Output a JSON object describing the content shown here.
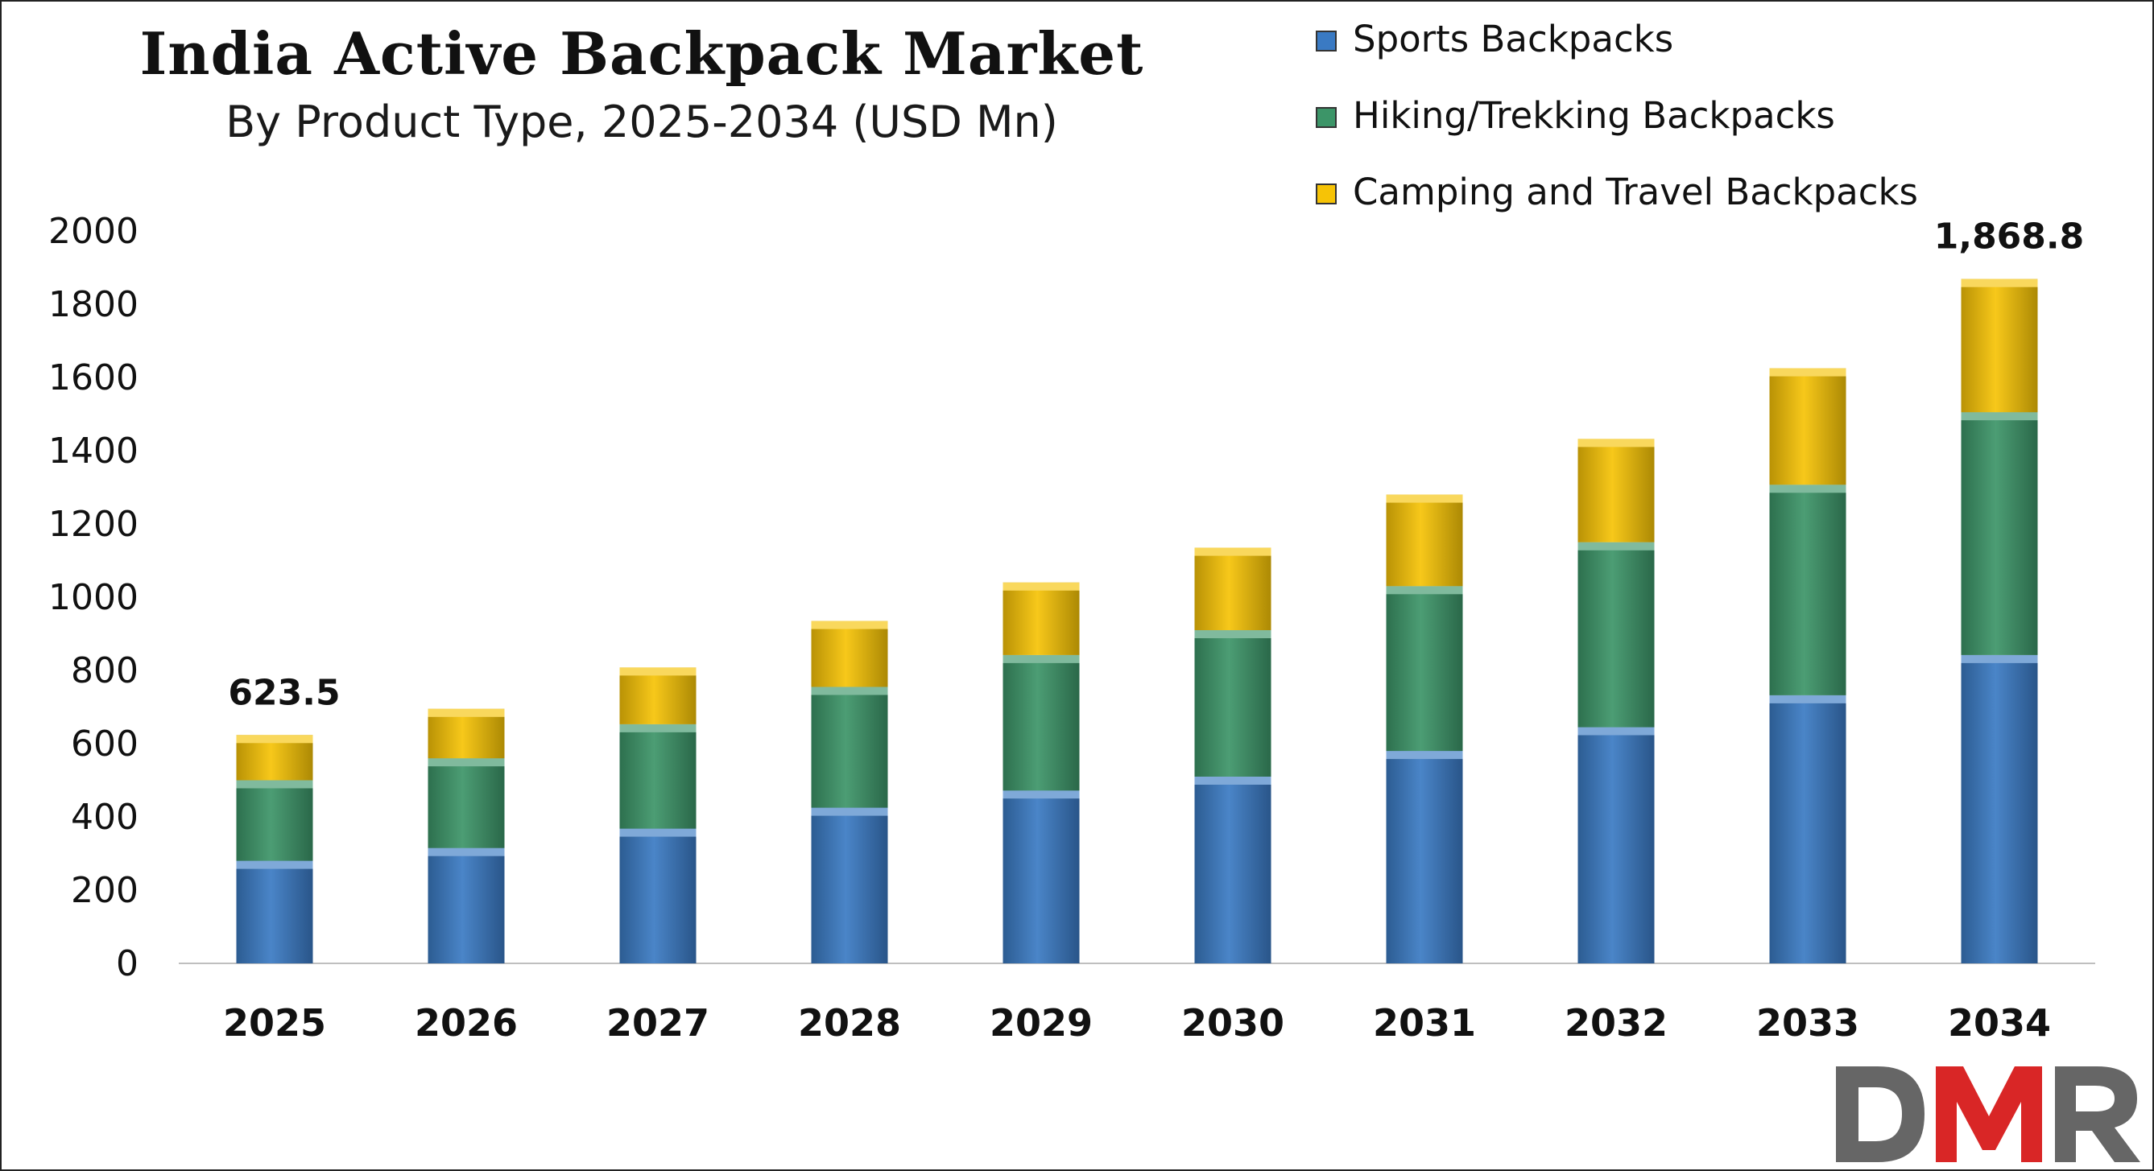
{
  "chart_data": {
    "type": "bar",
    "stacked": true,
    "title": "India Active Backpack Market",
    "subtitle": "By Product Type, 2025-2034 (USD Mn)",
    "categories": [
      "2025",
      "2026",
      "2027",
      "2028",
      "2029",
      "2030",
      "2031",
      "2032",
      "2033",
      "2034"
    ],
    "series": [
      {
        "name": "Sports Backpacks",
        "color": "#3a7ac3",
        "values": [
          280,
          315,
          368,
          425,
          472,
          510,
          580,
          645,
          732,
          842
        ]
      },
      {
        "name": "Hiking/Trekking Backpacks",
        "color": "#3c9568",
        "values": [
          220,
          245,
          285,
          330,
          370,
          400,
          450,
          505,
          575,
          663
        ]
      },
      {
        "name": "Camping and Travel Backpacks",
        "color": "#f6c306",
        "values": [
          123.5,
          135,
          155,
          180,
          198,
          225,
          250,
          282,
          318,
          363.8
        ]
      }
    ],
    "data_labels": [
      {
        "category": "2025",
        "text": "623.5"
      },
      {
        "category": "2034",
        "text": "1,868.8"
      }
    ],
    "y_ticks": [
      "0",
      "200",
      "400",
      "600",
      "800",
      "1000",
      "1200",
      "1400",
      "1600",
      "1800",
      "2000"
    ],
    "ylim": [
      0,
      2000
    ],
    "grid": false,
    "legend_position": "top-right"
  },
  "logo": {
    "text": "DMR",
    "colors": [
      "#666666",
      "#d92626"
    ]
  }
}
